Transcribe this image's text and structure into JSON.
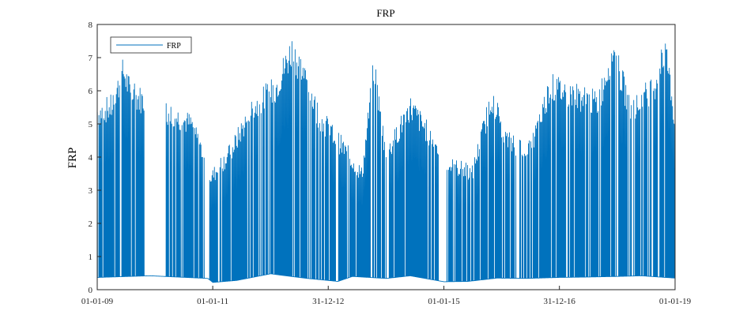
{
  "chart_data": {
    "type": "line",
    "title": "FRP",
    "xlabel": "",
    "ylabel": "FRP",
    "ylim": [
      0,
      8
    ],
    "xlim": [
      "2009-01-01",
      "2019-01-01"
    ],
    "y_ticks": [
      0,
      1,
      2,
      3,
      4,
      5,
      6,
      7,
      8
    ],
    "x_ticks": [
      "01-01-09",
      "01-01-11",
      "31-12-12",
      "01-01-15",
      "31-12-16",
      "01-01-19"
    ],
    "x_tick_dates": [
      "2009-01-01",
      "2011-01-01",
      "2012-12-31",
      "2015-01-01",
      "2016-12-31",
      "2019-01-01"
    ],
    "grid": false,
    "legend": {
      "entries": [
        "FRP"
      ],
      "location": "top-left"
    },
    "series": [
      {
        "name": "FRP",
        "color": "#0072bd",
        "baseline": [
          {
            "x": "2009-01-01",
            "y": 0.37
          },
          {
            "x": "2009-12-01",
            "y": 0.42
          },
          {
            "x": "2010-06-01",
            "y": 0.38
          },
          {
            "x": "2010-12-01",
            "y": 0.34
          },
          {
            "x": "2011-01-01",
            "y": 0.22
          },
          {
            "x": "2011-06-01",
            "y": 0.28
          },
          {
            "x": "2012-01-01",
            "y": 0.48
          },
          {
            "x": "2012-08-01",
            "y": 0.35
          },
          {
            "x": "2013-03-01",
            "y": 0.25
          },
          {
            "x": "2013-06-01",
            "y": 0.4
          },
          {
            "x": "2014-01-01",
            "y": 0.34
          },
          {
            "x": "2014-06-01",
            "y": 0.42
          },
          {
            "x": "2015-01-01",
            "y": 0.24
          },
          {
            "x": "2015-06-01",
            "y": 0.25
          },
          {
            "x": "2015-12-01",
            "y": 0.35
          },
          {
            "x": "2016-06-01",
            "y": 0.34
          },
          {
            "x": "2017-01-01",
            "y": 0.37
          },
          {
            "x": "2017-06-01",
            "y": 0.38
          },
          {
            "x": "2018-01-01",
            "y": 0.4
          },
          {
            "x": "2018-06-01",
            "y": 0.42
          },
          {
            "x": "2019-01-01",
            "y": 0.35
          }
        ],
        "peak_envelope": [
          {
            "x": "2009-01-10",
            "y": 5.7
          },
          {
            "x": "2009-04-01",
            "y": 5.9
          },
          {
            "x": "2009-06-15",
            "y": 7.05
          },
          {
            "x": "2009-08-01",
            "y": 6.3
          },
          {
            "x": "2009-09-15",
            "y": 6.2
          },
          {
            "x": "2010-04-01",
            "y": 5.7
          },
          {
            "x": "2010-09-01",
            "y": 5.3
          },
          {
            "x": "2010-12-20",
            "y": 3.6
          },
          {
            "x": "2011-05-01",
            "y": 4.5
          },
          {
            "x": "2011-09-01",
            "y": 5.8
          },
          {
            "x": "2012-02-01",
            "y": 6.5
          },
          {
            "x": "2012-05-15",
            "y": 7.75
          },
          {
            "x": "2012-08-01",
            "y": 6.9
          },
          {
            "x": "2012-11-01",
            "y": 5.6
          },
          {
            "x": "2013-04-01",
            "y": 4.6
          },
          {
            "x": "2013-08-01",
            "y": 3.7
          },
          {
            "x": "2013-10-15",
            "y": 7.15
          },
          {
            "x": "2014-01-01",
            "y": 4.3
          },
          {
            "x": "2014-06-01",
            "y": 5.9
          },
          {
            "x": "2014-10-01",
            "y": 5.0
          },
          {
            "x": "2015-02-01",
            "y": 4.0
          },
          {
            "x": "2015-07-01",
            "y": 3.8
          },
          {
            "x": "2015-11-01",
            "y": 6.25
          },
          {
            "x": "2016-02-01",
            "y": 4.8
          },
          {
            "x": "2016-07-01",
            "y": 4.5
          },
          {
            "x": "2016-11-01",
            "y": 6.55
          },
          {
            "x": "2017-04-01",
            "y": 6.3
          },
          {
            "x": "2017-09-01",
            "y": 6.0
          },
          {
            "x": "2017-12-01",
            "y": 7.75
          },
          {
            "x": "2018-04-01",
            "y": 5.7
          },
          {
            "x": "2018-09-01",
            "y": 6.7
          },
          {
            "x": "2018-11-01",
            "y": 7.8
          },
          {
            "x": "2019-01-01",
            "y": 5.4
          }
        ],
        "no_activity_gaps": [
          [
            "2009-11-01",
            "2010-03-01"
          ],
          [
            "2010-11-15",
            "2010-12-10"
          ],
          [
            "2013-02-15",
            "2013-03-01"
          ],
          [
            "2014-01-01",
            "2014-01-15"
          ],
          [
            "2014-12-01",
            "2015-01-15"
          ],
          [
            "2016-04-01",
            "2016-04-20"
          ]
        ]
      }
    ]
  }
}
